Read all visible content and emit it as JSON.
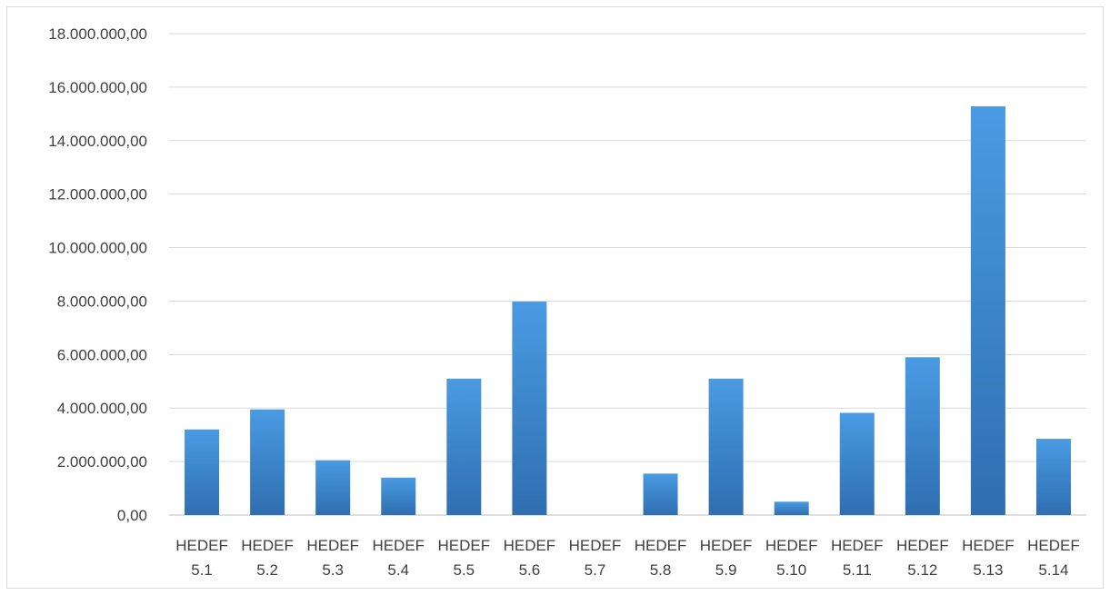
{
  "chart_data": {
    "type": "bar",
    "categories": [
      [
        "HEDEF",
        "5.1"
      ],
      [
        "HEDEF",
        "5.2"
      ],
      [
        "HEDEF",
        "5.3"
      ],
      [
        "HEDEF",
        "5.4"
      ],
      [
        "HEDEF",
        "5.5"
      ],
      [
        "HEDEF",
        "5.6"
      ],
      [
        "HEDEF",
        "5.7"
      ],
      [
        "HEDEF",
        "5.8"
      ],
      [
        "HEDEF",
        "5.9"
      ],
      [
        "HEDEF",
        "5.10"
      ],
      [
        "HEDEF",
        "5.11"
      ],
      [
        "HEDEF",
        "5.12"
      ],
      [
        "HEDEF",
        "5.13"
      ],
      [
        "HEDEF",
        "5.14"
      ]
    ],
    "values": [
      3200000,
      3950000,
      2050000,
      1400000,
      5100000,
      7980000,
      0,
      1550000,
      5100000,
      500000,
      3820000,
      5900000,
      15280000,
      2850000
    ],
    "ylim": [
      0,
      18000000
    ],
    "yticks": [
      "0,00",
      "2.000.000,00",
      "4.000.000,00",
      "6.000.000,00",
      "8.000.000,00",
      "10.000.000,00",
      "12.000.000,00",
      "14.000.000,00",
      "16.000.000,00",
      "18.000.000,00"
    ],
    "grid": true,
    "bar_color_top": "#4a9be3",
    "bar_color_bottom": "#2f6eb0"
  }
}
